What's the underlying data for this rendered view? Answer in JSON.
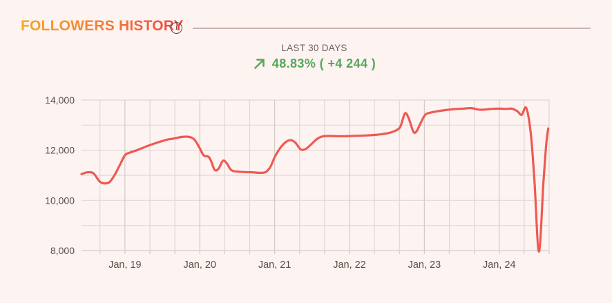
{
  "header": {
    "title": "FOLLOWERS HISTORY",
    "info_glyph": "i"
  },
  "summary": {
    "period_label": "LAST 30 DAYS",
    "change_text": "48.83% ( +4 244 )",
    "positive_color": "#56a85a"
  },
  "chart_data": {
    "type": "line",
    "title": "Followers history, last 30 days",
    "legend": false,
    "grid": true,
    "series": [
      {
        "name": "followers",
        "color": "#ee5a52",
        "points": [
          [
            0.42,
            11050
          ],
          [
            0.5,
            11120
          ],
          [
            0.58,
            11080
          ],
          [
            0.66,
            10760
          ],
          [
            0.72,
            10680
          ],
          [
            0.79,
            10720
          ],
          [
            0.86,
            11000
          ],
          [
            0.93,
            11400
          ],
          [
            1.0,
            11800
          ],
          [
            1.06,
            11900
          ],
          [
            1.15,
            11990
          ],
          [
            1.25,
            12110
          ],
          [
            1.33,
            12200
          ],
          [
            1.45,
            12320
          ],
          [
            1.56,
            12420
          ],
          [
            1.66,
            12470
          ],
          [
            1.76,
            12530
          ],
          [
            1.86,
            12530
          ],
          [
            1.93,
            12420
          ],
          [
            2.0,
            12080
          ],
          [
            2.05,
            11800
          ],
          [
            2.12,
            11730
          ],
          [
            2.16,
            11500
          ],
          [
            2.2,
            11210
          ],
          [
            2.25,
            11260
          ],
          [
            2.31,
            11580
          ],
          [
            2.36,
            11480
          ],
          [
            2.42,
            11210
          ],
          [
            2.5,
            11150
          ],
          [
            2.6,
            11130
          ],
          [
            2.7,
            11120
          ],
          [
            2.8,
            11100
          ],
          [
            2.88,
            11130
          ],
          [
            2.94,
            11320
          ],
          [
            3.0,
            11720
          ],
          [
            3.07,
            12070
          ],
          [
            3.15,
            12330
          ],
          [
            3.22,
            12400
          ],
          [
            3.28,
            12290
          ],
          [
            3.35,
            12030
          ],
          [
            3.42,
            12060
          ],
          [
            3.5,
            12270
          ],
          [
            3.57,
            12460
          ],
          [
            3.64,
            12550
          ],
          [
            3.73,
            12570
          ],
          [
            3.83,
            12560
          ],
          [
            3.93,
            12560
          ],
          [
            4.03,
            12570
          ],
          [
            4.13,
            12580
          ],
          [
            4.23,
            12590
          ],
          [
            4.33,
            12610
          ],
          [
            4.43,
            12640
          ],
          [
            4.53,
            12690
          ],
          [
            4.62,
            12790
          ],
          [
            4.68,
            12950
          ],
          [
            4.74,
            13470
          ],
          [
            4.79,
            13280
          ],
          [
            4.85,
            12760
          ],
          [
            4.89,
            12730
          ],
          [
            4.95,
            13080
          ],
          [
            5.01,
            13410
          ],
          [
            5.08,
            13500
          ],
          [
            5.17,
            13550
          ],
          [
            5.28,
            13600
          ],
          [
            5.4,
            13640
          ],
          [
            5.52,
            13660
          ],
          [
            5.63,
            13680
          ],
          [
            5.72,
            13620
          ],
          [
            5.8,
            13620
          ],
          [
            5.9,
            13650
          ],
          [
            6.0,
            13660
          ],
          [
            6.1,
            13650
          ],
          [
            6.17,
            13660
          ],
          [
            6.24,
            13560
          ],
          [
            6.3,
            13410
          ],
          [
            6.36,
            13690
          ],
          [
            6.42,
            12700
          ],
          [
            6.47,
            10800
          ],
          [
            6.53,
            7960
          ],
          [
            6.59,
            10700
          ],
          [
            6.63,
            12300
          ],
          [
            6.655,
            12870
          ]
        ]
      }
    ],
    "x_axis": {
      "range": [
        0.42,
        6.6667
      ],
      "minor_grid_start": 0.6667,
      "minor_grid_step": 0.33333,
      "minor_grid_count": 19,
      "labels": [
        {
          "pos": 1,
          "label": "Jan, 19"
        },
        {
          "pos": 2,
          "label": "Jan, 20"
        },
        {
          "pos": 3,
          "label": "Jan, 21"
        },
        {
          "pos": 4,
          "label": "Jan, 22"
        },
        {
          "pos": 5,
          "label": "Jan, 23"
        },
        {
          "pos": 6,
          "label": "Jan, 24"
        }
      ]
    },
    "y_axis": {
      "range": [
        8000,
        14000
      ],
      "grid_step": 1000,
      "labels": [
        {
          "value": 8000,
          "label": "8,000"
        },
        {
          "value": 10000,
          "label": "10,000"
        },
        {
          "value": 12000,
          "label": "12,000"
        },
        {
          "value": 14000,
          "label": "14,000"
        }
      ]
    },
    "colors": {
      "grid_minor": "#ded8d6",
      "grid_major": "#d2cbc9",
      "axis_text": "#5b4c47",
      "line": "#ee5a52"
    }
  }
}
